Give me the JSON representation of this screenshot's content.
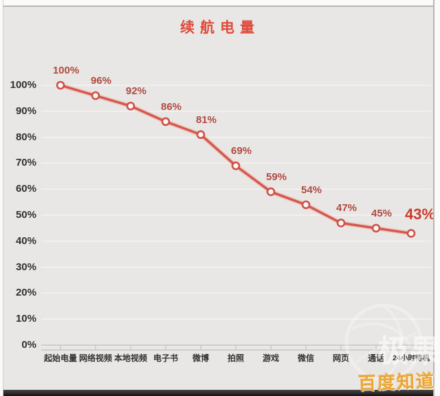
{
  "page": {
    "title": "续航电量"
  },
  "chart_data": {
    "type": "line",
    "title": "续航电量",
    "categories": [
      "起始电量",
      "网络视频",
      "本地视频",
      "电子书",
      "微博",
      "拍照",
      "游戏",
      "微信",
      "网页",
      "通话",
      "24小时待机"
    ],
    "values": [
      100,
      96,
      92,
      86,
      81,
      69,
      59,
      54,
      47,
      45,
      43
    ],
    "point_labels": [
      "100%",
      "96%",
      "92%",
      "86%",
      "81%",
      "69%",
      "59%",
      "54%",
      "47%",
      "45%",
      "43%"
    ],
    "ytick_labels": [
      "0%",
      "10%",
      "20%",
      "30%",
      "40%",
      "50%",
      "60%",
      "70%",
      "80%",
      "90%",
      "100%"
    ],
    "ylim": [
      0,
      100
    ],
    "ytick_step": 10,
    "xlabel": "",
    "ylabel": "",
    "grid": true,
    "legend": "none",
    "emphasis": {
      "last_point_label": "43%",
      "style": "enlarged-bold"
    }
  },
  "watermark": {
    "logo_text": "极果",
    "badge_text": "百度知道"
  },
  "colors": {
    "background": "#e9e7e5",
    "title": "#df4a3b",
    "line": "#d4574c",
    "line_glow": "#eba89f",
    "marker_fill": "#fdf8f6",
    "marker_ring": "#cf5047",
    "point_label": "#b04a40",
    "point_label_emphasis": "#ca3a2e",
    "axis_text": "#33312f",
    "gridline": "#f4f3f1",
    "axis_line": "#c2c0be",
    "watermark_badge": "#eaa633"
  }
}
